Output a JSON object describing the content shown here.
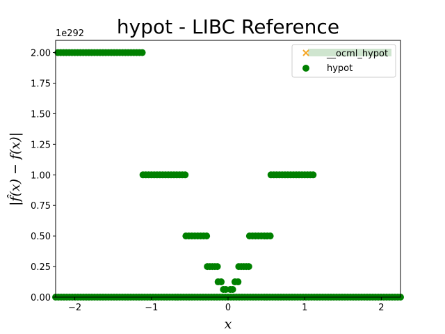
{
  "chart_data": {
    "type": "scatter",
    "title": "hypot - LIBC Reference",
    "xlabel": "x",
    "ylabel": "|f̂(x) − f(x)|",
    "y_offset_label": "1e292",
    "xlim": [
      -2.25,
      2.25
    ],
    "ylim": [
      0,
      2.1
    ],
    "xticks": [
      -2,
      -1,
      0,
      1,
      2
    ],
    "xtick_labels": [
      "−2",
      "−1",
      "0",
      "1",
      "2"
    ],
    "yticks": [
      0,
      0.25,
      0.5,
      0.75,
      1.0,
      1.25,
      1.5,
      1.75,
      2.0
    ],
    "ytick_labels": [
      "0.00",
      "0.25",
      "0.50",
      "0.75",
      "1.00",
      "1.25",
      "1.50",
      "1.75",
      "2.00"
    ],
    "grid": false,
    "legend_position": "top-right",
    "series": [
      {
        "name": "__ocml_hypot",
        "marker": "x",
        "color": "#f5a623",
        "points": []
      },
      {
        "name": "hypot",
        "marker": "circle",
        "color": "#008000",
        "segments": [
          {
            "x": [
              -2.25,
              2.25
            ],
            "y": 0
          },
          {
            "x": [
              -2.22,
              -1.12
            ],
            "y": 2.0
          },
          {
            "x": [
              -1.11,
              -0.56
            ],
            "y": 1.0
          },
          {
            "x": [
              0.56,
              1.11
            ],
            "y": 1.0
          },
          {
            "x": [
              -0.55,
              -0.28
            ],
            "y": 0.5
          },
          {
            "x": [
              0.28,
              0.55
            ],
            "y": 0.5
          },
          {
            "x": [
              -0.27,
              -0.14
            ],
            "y": 0.25
          },
          {
            "x": [
              0.14,
              0.27
            ],
            "y": 0.25
          },
          {
            "x": [
              -0.13,
              -0.09
            ],
            "y": 0.125
          },
          {
            "x": [
              0.09,
              0.13
            ],
            "y": 0.125
          },
          {
            "x": [
              -0.06,
              -0.03
            ],
            "y": 0.0625
          },
          {
            "x": [
              0.03,
              0.06
            ],
            "y": 0.0625
          }
        ]
      }
    ]
  }
}
